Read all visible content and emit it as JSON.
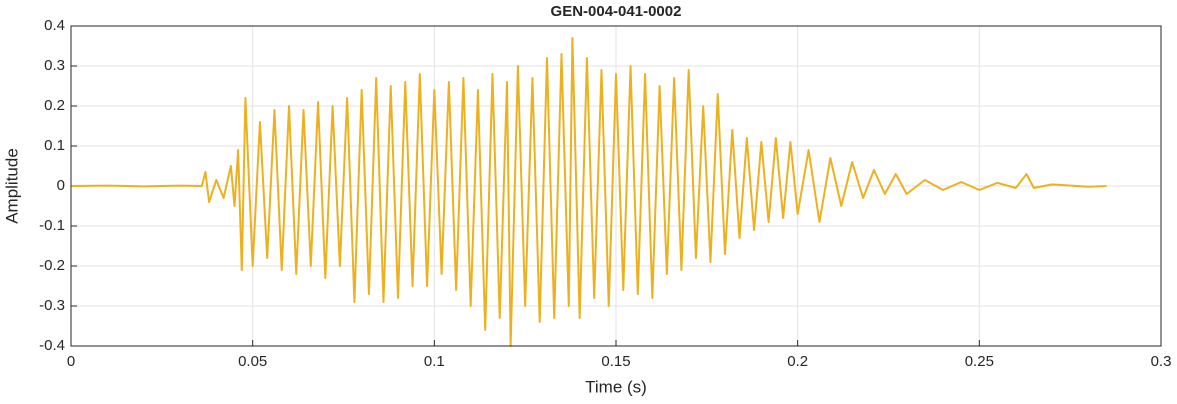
{
  "chart_data": {
    "type": "line",
    "title": "GEN-004-041-0002",
    "xlabel": "Time (s)",
    "ylabel": "Amplitude",
    "x": [
      0,
      0.01,
      0.02,
      0.03,
      0.036,
      0.037,
      0.038,
      0.04,
      0.042,
      0.044,
      0.045,
      0.046,
      0.047,
      0.048,
      0.05,
      0.052,
      0.054,
      0.056,
      0.058,
      0.06,
      0.062,
      0.064,
      0.066,
      0.068,
      0.07,
      0.072,
      0.074,
      0.076,
      0.078,
      0.08,
      0.082,
      0.084,
      0.086,
      0.088,
      0.09,
      0.092,
      0.094,
      0.096,
      0.098,
      0.1,
      0.102,
      0.104,
      0.106,
      0.108,
      0.11,
      0.112,
      0.114,
      0.116,
      0.118,
      0.12,
      0.121,
      0.123,
      0.125,
      0.127,
      0.129,
      0.131,
      0.133,
      0.135,
      0.137,
      0.138,
      0.14,
      0.142,
      0.144,
      0.146,
      0.148,
      0.15,
      0.152,
      0.154,
      0.156,
      0.158,
      0.16,
      0.162,
      0.164,
      0.166,
      0.168,
      0.17,
      0.172,
      0.174,
      0.176,
      0.178,
      0.18,
      0.182,
      0.184,
      0.186,
      0.188,
      0.19,
      0.192,
      0.194,
      0.196,
      0.198,
      0.2,
      0.203,
      0.206,
      0.209,
      0.212,
      0.215,
      0.218,
      0.221,
      0.224,
      0.227,
      0.23,
      0.235,
      0.24,
      0.245,
      0.25,
      0.255,
      0.26,
      0.263,
      0.265,
      0.27,
      0.28,
      0.285
    ],
    "series": [
      {
        "color": "#EDB120",
        "values": [
          0,
          0.001,
          -0.001,
          0.001,
          0,
          0.035,
          -0.04,
          0.015,
          -0.03,
          0.05,
          -0.05,
          0.09,
          -0.21,
          0.22,
          -0.2,
          0.16,
          -0.18,
          0.19,
          -0.21,
          0.2,
          -0.22,
          0.19,
          -0.2,
          0.21,
          -0.23,
          0.2,
          -0.2,
          0.22,
          -0.29,
          0.24,
          -0.27,
          0.27,
          -0.29,
          0.25,
          -0.28,
          0.26,
          -0.25,
          0.28,
          -0.25,
          0.24,
          -0.22,
          0.26,
          -0.26,
          0.27,
          -0.3,
          0.24,
          -0.36,
          0.28,
          -0.33,
          0.26,
          -0.4,
          0.3,
          -0.3,
          0.27,
          -0.34,
          0.32,
          -0.33,
          0.33,
          -0.3,
          0.37,
          -0.33,
          0.32,
          -0.28,
          0.29,
          -0.3,
          0.28,
          -0.26,
          0.3,
          -0.27,
          0.28,
          -0.28,
          0.25,
          -0.22,
          0.27,
          -0.21,
          0.29,
          -0.18,
          0.2,
          -0.19,
          0.23,
          -0.17,
          0.14,
          -0.13,
          0.12,
          -0.11,
          0.11,
          -0.09,
          0.12,
          -0.08,
          0.11,
          -0.07,
          0.09,
          -0.09,
          0.07,
          -0.05,
          0.06,
          -0.03,
          0.04,
          -0.02,
          0.03,
          -0.02,
          0.015,
          -0.01,
          0.01,
          -0.01,
          0.008,
          -0.005,
          0.03,
          -0.005,
          0.004,
          -0.002,
          0
        ]
      }
    ],
    "xlim": [
      0,
      0.3
    ],
    "xticks": [
      0,
      0.05,
      0.1,
      0.15,
      0.2,
      0.25,
      0.3
    ],
    "ylim": [
      -0.4,
      0.4
    ],
    "yticks": [
      -0.4,
      -0.3,
      -0.2,
      -0.1,
      0,
      0.1,
      0.2,
      0.3,
      0.4
    ],
    "grid": true
  }
}
